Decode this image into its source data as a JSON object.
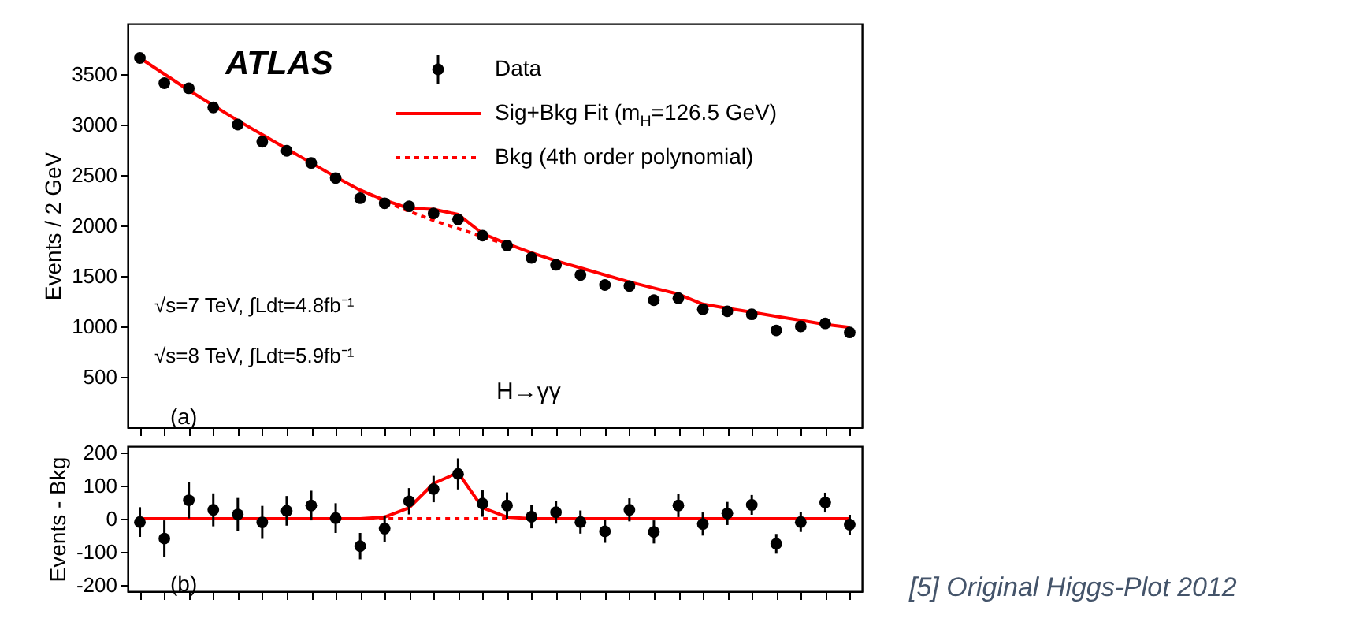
{
  "chart_data": [
    {
      "type": "scatter",
      "ylabel": "Events / 2 GeV",
      "ylim": [
        0,
        4000
      ],
      "yticks": [
        500,
        1000,
        1500,
        2000,
        2500,
        3000,
        3500
      ],
      "tick_labels": "y",
      "legend": "top right",
      "categories": [
        null,
        null,
        null,
        null,
        null,
        null,
        null,
        null,
        null,
        null,
        null,
        null,
        null,
        null,
        null,
        null,
        null,
        null,
        null,
        null,
        null,
        null,
        null,
        null,
        null,
        null,
        null,
        null,
        null,
        null
      ],
      "annotations": [
        "ATLAS",
        "√s=7 TeV, ∫Ldt=4.8fb⁻¹",
        "√s=8 TeV, ∫Ldt=5.9fb⁻¹",
        "H→γγ",
        "(a)"
      ],
      "series": [
        {
          "name": "Data",
          "type": "scatter",
          "marker": "circle",
          "color": "#000000",
          "values": [
            3660,
            3410,
            3360,
            3170,
            3000,
            2830,
            2740,
            2620,
            2470,
            2270,
            2220,
            2190,
            2120,
            2060,
            1900,
            1800,
            1680,
            1610,
            1510,
            1410,
            1400,
            1260,
            1280,
            1170,
            1150,
            1120,
            960,
            1000,
            1030,
            940
          ]
        },
        {
          "name": "Sig+Bkg Fit (m$_{H}$=126.5 GeV)",
          "type": "line",
          "line_style": "solid",
          "color": "#ff0000",
          "values": [
            3660,
            3500,
            3340,
            3190,
            3040,
            2900,
            2760,
            2620,
            2480,
            2350,
            2250,
            2170,
            2160,
            2110,
            1920,
            1820,
            1730,
            1650,
            1580,
            1510,
            1440,
            1380,
            1320,
            1220,
            1180,
            1140,
            1100,
            1060,
            1020,
            990
          ]
        },
        {
          "name": "Bkg (4th order polynomial)",
          "type": "line",
          "line_style": "dotted",
          "color": "#ff0000",
          "values": [
            null,
            null,
            null,
            null,
            null,
            null,
            null,
            null,
            null,
            2350,
            2240,
            2140,
            2050,
            1970,
            1890,
            1810,
            null,
            null,
            null,
            null,
            null,
            null,
            null,
            null,
            null,
            null,
            null,
            null,
            null,
            null
          ]
        }
      ]
    },
    {
      "type": "scatter",
      "ylabel": "Events - Bkg",
      "ylim": [
        -220,
        220
      ],
      "yticks": [
        -200,
        -100,
        0,
        100,
        200
      ],
      "tick_labels": "y",
      "categories": [
        null,
        null,
        null,
        null,
        null,
        null,
        null,
        null,
        null,
        null,
        null,
        null,
        null,
        null,
        null,
        null,
        null,
        null,
        null,
        null,
        null,
        null,
        null,
        null,
        null,
        null,
        null,
        null,
        null,
        null
      ],
      "annotations": [
        "(b)",
        "[5] Original Higgs-Plot 2012"
      ],
      "series": [
        {
          "type": "scatter",
          "marker": "circle",
          "color": "#000000",
          "values": [
            -10,
            -60,
            56,
            27,
            13,
            -11,
            24,
            40,
            2,
            -83,
            -30,
            53,
            90,
            136,
            46,
            40,
            6,
            20,
            -10,
            -38,
            27,
            -40,
            40,
            -16,
            16,
            42,
            -76,
            -10,
            49,
            -18
          ],
          "errors": [
            45,
            55,
            55,
            50,
            50,
            50,
            45,
            45,
            45,
            40,
            40,
            40,
            40,
            47,
            40,
            40,
            35,
            35,
            35,
            35,
            35,
            35,
            35,
            35,
            35,
            30,
            30,
            30,
            30,
            30
          ]
        },
        {
          "type": "line",
          "line_style": "solid",
          "color": "#ff0000",
          "values": [
            0,
            0,
            0,
            0,
            0,
            0,
            0,
            0,
            0,
            0,
            5,
            33,
            107,
            140,
            33,
            5,
            0,
            0,
            0,
            0,
            0,
            0,
            0,
            0,
            0,
            0,
            0,
            0,
            0,
            0
          ]
        },
        {
          "type": "line",
          "line_style": "dotted",
          "color": "#ff0000",
          "values": [
            null,
            null,
            null,
            null,
            null,
            null,
            null,
            null,
            null,
            0,
            0,
            0,
            0,
            0,
            0,
            0,
            null,
            null,
            null,
            null,
            null,
            null,
            null,
            null,
            null,
            null,
            null,
            null,
            null,
            null
          ]
        }
      ]
    }
  ]
}
